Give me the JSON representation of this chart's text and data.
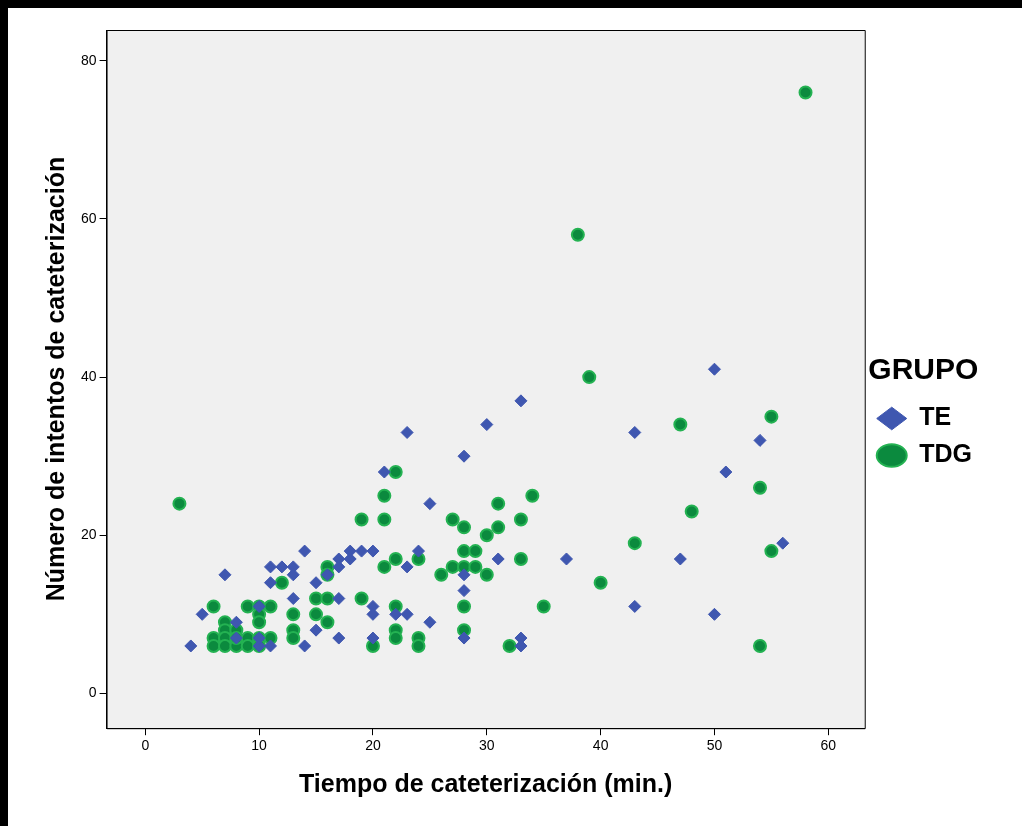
{
  "chart_data": {
    "type": "scatter",
    "xlabel": "Tiempo de cateterización (min.)",
    "ylabel": "Número de intentos de cateterización",
    "legend_title": "GRUPO",
    "legend": "right",
    "grid": false,
    "xlim": [
      -3.4,
      63.2
    ],
    "xticks": [
      0,
      10,
      20,
      30,
      40,
      50,
      60
    ],
    "ylim": [
      -4.4,
      83.9
    ],
    "yticks": [
      0,
      20,
      40,
      60,
      80
    ],
    "series": [
      {
        "name": "TE",
        "color": "#3f57b0",
        "marker": "diamond",
        "x": [
          4,
          5,
          7,
          8,
          8,
          10,
          10,
          10,
          11,
          11,
          11,
          12,
          13,
          13,
          13,
          14,
          14,
          15,
          15,
          16,
          17,
          17,
          17,
          17,
          18,
          18,
          19,
          20,
          20,
          20,
          20,
          21,
          22,
          23,
          23,
          23,
          24,
          25,
          25,
          28,
          28,
          28,
          28,
          30,
          31,
          33,
          33,
          33,
          37,
          43,
          43,
          47,
          50,
          50,
          51,
          54,
          56
        ],
        "values": [
          6,
          10,
          15,
          9,
          7,
          11,
          6,
          7,
          6,
          16,
          14,
          16,
          16,
          15,
          12,
          18,
          6,
          14,
          8,
          15,
          17,
          16,
          12,
          7,
          17,
          18,
          18,
          18,
          11,
          10,
          7,
          28,
          10,
          33,
          16,
          10,
          18,
          24,
          9,
          30,
          15,
          13,
          7,
          34,
          17,
          37,
          7,
          6,
          17,
          33,
          11,
          17,
          41,
          10,
          28,
          32,
          19
        ]
      },
      {
        "name": "TDG",
        "color": "#0b8a3e",
        "marker": "circle",
        "x": [
          3,
          6,
          6,
          6,
          7,
          7,
          7,
          7,
          8,
          8,
          8,
          9,
          9,
          9,
          10,
          10,
          10,
          10,
          10,
          11,
          11,
          12,
          13,
          13,
          13,
          15,
          15,
          16,
          16,
          16,
          16,
          19,
          19,
          20,
          21,
          21,
          21,
          22,
          22,
          22,
          22,
          22,
          24,
          24,
          24,
          26,
          27,
          27,
          28,
          28,
          28,
          28,
          28,
          29,
          29,
          30,
          30,
          31,
          31,
          32,
          33,
          33,
          34,
          35,
          38,
          39,
          40,
          43,
          47,
          48,
          54,
          54,
          55,
          55,
          58
        ],
        "values": [
          24,
          11,
          7,
          6,
          9,
          8,
          7,
          6,
          8,
          6,
          7,
          11,
          7,
          6,
          11,
          10,
          9,
          7,
          6,
          11,
          7,
          14,
          10,
          8,
          7,
          12,
          10,
          16,
          15,
          12,
          9,
          22,
          12,
          6,
          25,
          22,
          16,
          28,
          17,
          11,
          8,
          7,
          17,
          7,
          6,
          15,
          22,
          16,
          21,
          18,
          16,
          11,
          8,
          18,
          16,
          20,
          15,
          24,
          21,
          6,
          22,
          17,
          25,
          11,
          58,
          40,
          14,
          19,
          34,
          23,
          26,
          6,
          35,
          18,
          76
        ]
      }
    ]
  }
}
